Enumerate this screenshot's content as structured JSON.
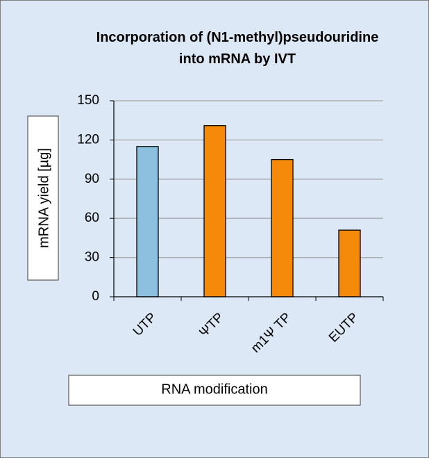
{
  "chart_data": {
    "type": "bar",
    "title_lines": [
      "Incorporation of (N1-methyl)pseudouridine",
      "into mRNA by IVT"
    ],
    "xlabel": "RNA modification",
    "ylabel": "mRNA yield [µg]",
    "categories": [
      "UTP",
      "ΨTP",
      "m1Ψ TP",
      "EUTP"
    ],
    "values": [
      115,
      131,
      105,
      51
    ],
    "bar_colors": [
      "#8dbfdf",
      "#f58a0a",
      "#f58a0a",
      "#f58a0a"
    ],
    "ylim": [
      0,
      150
    ],
    "yticks": [
      0,
      30,
      60,
      90,
      120,
      150
    ],
    "grid": true,
    "legend": "none"
  },
  "colors": {
    "background": "#dce8f5",
    "gridline": "#a6a6a6",
    "bar_outline": "#000000"
  }
}
